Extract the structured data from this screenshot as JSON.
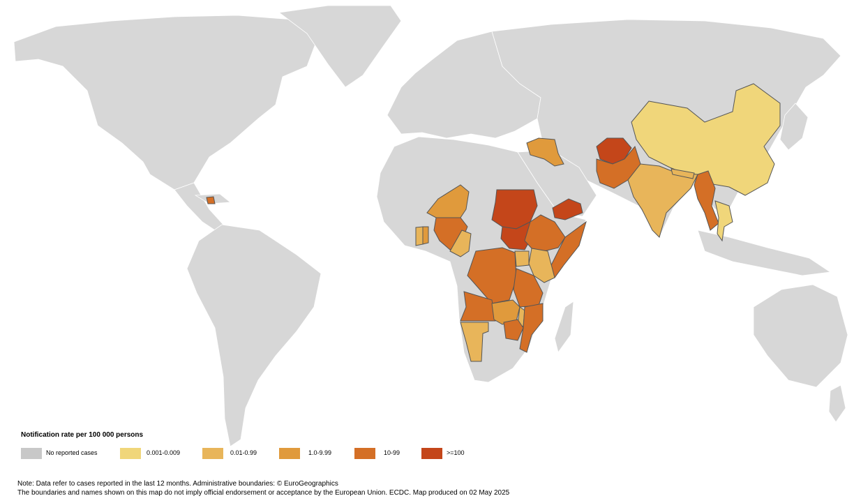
{
  "legend": {
    "title": "Notification rate per 100 000 persons",
    "classes": [
      {
        "label": "No reported cases",
        "color": "#c8c8c8"
      },
      {
        "label": "0.001-0.009",
        "color": "#f0d67a"
      },
      {
        "label": "0.01-0.99",
        "color": "#e8b55a"
      },
      {
        "label": "1.0-9.99",
        "color": "#e09a3c"
      },
      {
        "label": "10-99",
        "color": "#d46f26"
      },
      {
        "label": ">=100",
        "color": "#c4461a"
      }
    ]
  },
  "regions": {
    "china": "0.001-0.009",
    "india": "0.01-0.99",
    "pakistan": "10-99",
    "afghanistan": ">=100",
    "myanmar": "10-99",
    "thailand": "0.001-0.009",
    "nepal": "0.01-0.99",
    "iraq": "1.0-9.99",
    "yemen": ">=100",
    "sudan": ">=100",
    "south-sudan": ">=100",
    "ethiopia": "10-99",
    "somalia": "10-99",
    "kenya": "0.01-0.99",
    "uganda": "0.01-0.99",
    "niger": "1.0-9.99",
    "nigeria": "10-99",
    "cameroon": "0.01-0.99",
    "ghana": "1.0-9.99",
    "cote-divoire": "0.01-0.99",
    "dr-congo": "10-99",
    "tanzania": "10-99",
    "zambia": "1.0-9.99",
    "angola": "10-99",
    "namibia": "0.01-0.99",
    "mozambique": "10-99",
    "malawi": "0.01-0.99",
    "zimbabwe": "10-99",
    "haiti": "10-99"
  },
  "notes": {
    "line1": "Note: Data refer to cases reported in the last 12 months. Administrative boundaries: © EuroGeographics",
    "line2": "The boundaries and names shown on this map do not imply official endorsement or acceptance by the European Union. ECDC. Map produced on 02 May 2025"
  }
}
